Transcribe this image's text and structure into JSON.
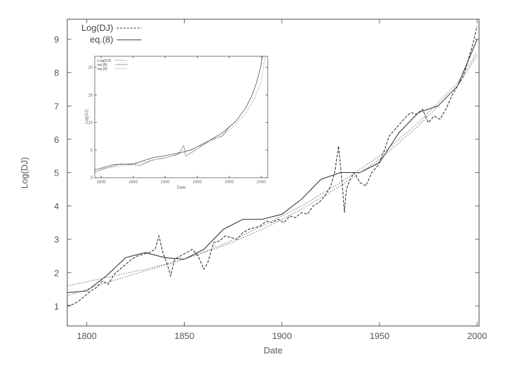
{
  "chart_data": [
    {
      "type": "line",
      "xlabel": "Date",
      "ylabel": "Log(DJ)",
      "xlim": [
        1790,
        2001
      ],
      "ylim": [
        0.4,
        9.6
      ],
      "xticks": [
        "1800",
        "1850",
        "1900",
        "1950",
        "2000"
      ],
      "yticks": [
        "1",
        "2",
        "3",
        "4",
        "5",
        "6",
        "7",
        "8",
        "9"
      ],
      "legend": {
        "position": "top-left",
        "entries": [
          "Log(DJ)",
          "eq.(8)"
        ]
      },
      "series": [
        {
          "name": "Log(DJ)",
          "style": "dashed",
          "x": [
            1790,
            1793,
            1796,
            1799,
            1802,
            1805,
            1808,
            1811,
            1814,
            1817,
            1820,
            1823,
            1826,
            1829,
            1832,
            1835,
            1837,
            1839,
            1841,
            1843,
            1845,
            1848,
            1851,
            1854,
            1857,
            1860,
            1862,
            1865,
            1868,
            1871,
            1874,
            1877,
            1880,
            1883,
            1886,
            1889,
            1892,
            1895,
            1898,
            1901,
            1904,
            1907,
            1910,
            1913,
            1916,
            1919,
            1922,
            1925,
            1927,
            1929,
            1930,
            1931,
            1932,
            1933,
            1935,
            1937,
            1940,
            1943,
            1946,
            1949,
            1952,
            1955,
            1958,
            1961,
            1964,
            1966,
            1969,
            1972,
            1975,
            1978,
            1981,
            1984,
            1987,
            1990,
            1993,
            1996,
            1998,
            2000
          ],
          "values": [
            1.0,
            1.05,
            1.15,
            1.3,
            1.45,
            1.55,
            1.75,
            1.65,
            1.95,
            2.1,
            2.25,
            2.4,
            2.5,
            2.55,
            2.6,
            2.7,
            3.1,
            2.6,
            2.3,
            1.9,
            2.4,
            2.5,
            2.6,
            2.7,
            2.5,
            2.1,
            2.3,
            2.9,
            2.95,
            3.1,
            3.05,
            3.0,
            3.2,
            3.3,
            3.35,
            3.4,
            3.55,
            3.5,
            3.6,
            3.5,
            3.7,
            3.65,
            3.8,
            3.75,
            4.0,
            4.1,
            4.3,
            4.6,
            5.0,
            5.8,
            5.2,
            4.6,
            3.8,
            4.5,
            4.8,
            5.0,
            4.7,
            4.6,
            5.0,
            5.2,
            5.6,
            6.1,
            6.3,
            6.5,
            6.7,
            6.8,
            6.75,
            6.9,
            6.5,
            6.7,
            6.6,
            6.9,
            7.3,
            7.6,
            7.9,
            8.5,
            8.9,
            9.4
          ]
        },
        {
          "name": "eq.(8)",
          "style": "solid",
          "x": [
            1790,
            1800,
            1810,
            1820,
            1830,
            1840,
            1850,
            1860,
            1870,
            1880,
            1890,
            1900,
            1910,
            1920,
            1930,
            1940,
            1950,
            1960,
            1970,
            1980,
            1990,
            2000
          ],
          "values": [
            1.4,
            1.45,
            1.9,
            2.45,
            2.6,
            2.45,
            2.4,
            2.7,
            3.3,
            3.6,
            3.6,
            3.75,
            4.2,
            4.8,
            5.0,
            5.0,
            5.3,
            6.2,
            6.8,
            7.0,
            7.6,
            9.0
          ]
        },
        {
          "name": "",
          "style": "dotted",
          "x": [
            1790,
            1810,
            1830,
            1850,
            1870,
            1890,
            1910,
            1930,
            1950,
            1970,
            1990,
            2000
          ],
          "values": [
            1.6,
            1.85,
            2.1,
            2.4,
            2.8,
            3.3,
            3.9,
            4.6,
            5.4,
            6.4,
            7.6,
            8.5
          ]
        },
        {
          "name": "",
          "style": "dotted",
          "x": [
            1790,
            1810,
            1830,
            1850,
            1870,
            1890,
            1910,
            1930,
            1950,
            1970,
            1990,
            2000
          ],
          "values": [
            1.3,
            1.7,
            2.05,
            2.4,
            2.85,
            3.4,
            4.0,
            4.7,
            5.5,
            6.5,
            7.7,
            8.6
          ]
        }
      ]
    },
    {
      "type": "line",
      "xlabel": "Date",
      "ylabel": "Log(DJ)",
      "xlim": [
        1790,
        2060
      ],
      "ylim": [
        0,
        22
      ],
      "xticks": [
        "1800",
        "1850",
        "1900",
        "1950",
        "2000",
        "2050"
      ],
      "yticks": [
        "0",
        "5",
        "10",
        "15",
        "20"
      ],
      "legend": {
        "position": "top-left",
        "entries": [
          "Log(DJ)",
          "eq.(8)",
          "eq.(9)"
        ]
      },
      "series": [
        {
          "name": "Log(DJ)",
          "style": "dashed",
          "x": [
            1790,
            1810,
            1830,
            1850,
            1860,
            1880,
            1900,
            1920,
            1929,
            1932,
            1950,
            1970,
            1990,
            2000
          ],
          "values": [
            1.0,
            1.8,
            2.5,
            2.4,
            2.2,
            3.2,
            3.6,
            4.2,
            5.8,
            3.9,
            5.2,
            6.8,
            7.6,
            9.3
          ]
        },
        {
          "name": "eq.(8)",
          "style": "solid",
          "x": [
            1790,
            1820,
            1850,
            1880,
            1910,
            1940,
            1970,
            1990,
            2010,
            2025,
            2035,
            2042,
            2048,
            2052
          ],
          "values": [
            1.4,
            2.4,
            2.5,
            3.6,
            4.2,
            5.0,
            6.8,
            8.2,
            10.2,
            12.5,
            14.8,
            17.0,
            19.5,
            22.0
          ]
        },
        {
          "name": "eq.(9)",
          "style": "dotted",
          "x": [
            1790,
            1850,
            1910,
            1970,
            2000,
            2025,
            2040,
            2050,
            2056
          ],
          "values": [
            1.5,
            2.4,
            3.9,
            6.4,
            8.6,
            11.5,
            14.5,
            17.5,
            22.0
          ]
        }
      ]
    }
  ]
}
